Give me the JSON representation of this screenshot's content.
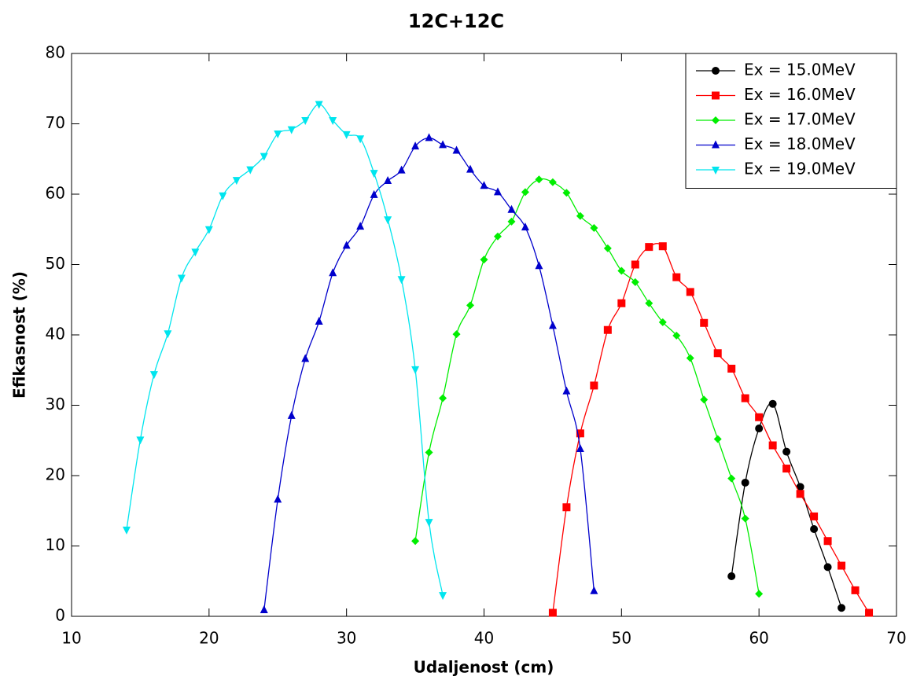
{
  "chart_data": {
    "type": "line",
    "title": "12C+12C",
    "x_label": "Udaljenost (cm)",
    "y_label": "Efikasnost (%)",
    "xlim": [
      10,
      70
    ],
    "ylim": [
      0,
      80
    ],
    "xticks": [
      10,
      20,
      30,
      40,
      50,
      60,
      70
    ],
    "yticks": [
      0,
      10,
      20,
      30,
      40,
      50,
      60,
      70,
      80
    ],
    "legend_position": "upper right",
    "series": [
      {
        "name": "Ex = 15.0MeV",
        "color": "#000000",
        "marker": "circle",
        "x": [
          58,
          59,
          60,
          61,
          62,
          63,
          64,
          65,
          66
        ],
        "values": [
          5.7,
          19,
          26.7,
          30.2,
          23.4,
          18.4,
          12.4,
          7.0,
          1.2
        ]
      },
      {
        "name": "Ex = 16.0MeV",
        "color": "#ff0000",
        "marker": "square",
        "x": [
          45,
          46,
          47,
          48,
          49,
          50,
          51,
          52,
          53,
          54,
          55,
          56,
          57,
          58,
          59,
          60,
          61,
          62,
          63,
          64,
          65,
          66,
          67,
          68
        ],
        "values": [
          0.5,
          15.5,
          26,
          32.8,
          40.7,
          44.5,
          50,
          52.5,
          52.6,
          48.2,
          46.1,
          41.7,
          37.4,
          35.2,
          31,
          28.3,
          24.3,
          21,
          17.4,
          14.2,
          10.7,
          7.2,
          3.7,
          0.5
        ]
      },
      {
        "name": "Ex = 17.0MeV",
        "color": "#00ee00",
        "marker": "diamond",
        "x": [
          35,
          36,
          37,
          38,
          39,
          40,
          41,
          42,
          43,
          44,
          45,
          46,
          47,
          48,
          49,
          50,
          51,
          52,
          53,
          54,
          55,
          56,
          57,
          58,
          59,
          60
        ],
        "values": [
          10.7,
          23.3,
          31,
          40.1,
          44.2,
          50.7,
          54,
          56.1,
          60.3,
          62.1,
          61.7,
          60.2,
          56.9,
          55.2,
          52.3,
          49.1,
          47.5,
          44.5,
          41.8,
          39.9,
          36.7,
          30.8,
          25.2,
          19.6,
          13.9,
          3.2
        ]
      },
      {
        "name": "Ex = 18.0MeV",
        "color": "#0000cc",
        "marker": "triangle-up",
        "x": [
          24,
          25,
          26,
          27,
          28,
          29,
          30,
          31,
          32,
          33,
          34,
          35,
          36,
          37,
          38,
          39,
          40,
          41,
          42,
          43,
          44,
          45,
          46,
          47,
          48
        ],
        "values": [
          0.9,
          16.6,
          28.5,
          36.6,
          41.9,
          48.8,
          52.7,
          55.4,
          59.9,
          61.9,
          63.4,
          66.8,
          68,
          67,
          66.2,
          63.5,
          61.2,
          60.3,
          57.8,
          55.3,
          49.8,
          41.3,
          32,
          23.8,
          3.6
        ]
      },
      {
        "name": "Ex = 19.0MeV",
        "color": "#00e5ee",
        "marker": "triangle-down",
        "x": [
          14,
          15,
          16,
          17,
          18,
          19,
          20,
          21,
          22,
          23,
          24,
          25,
          26,
          27,
          28,
          29,
          30,
          31,
          32,
          33,
          34,
          35,
          36,
          37
        ],
        "values": [
          12.3,
          25.1,
          34.4,
          40.2,
          48.1,
          51.8,
          55,
          59.8,
          62,
          63.5,
          65.4,
          68.6,
          69.2,
          70.5,
          72.8,
          70.5,
          68.5,
          67.9,
          63,
          56.4,
          47.9,
          35.1,
          13.4,
          3
        ]
      }
    ]
  }
}
